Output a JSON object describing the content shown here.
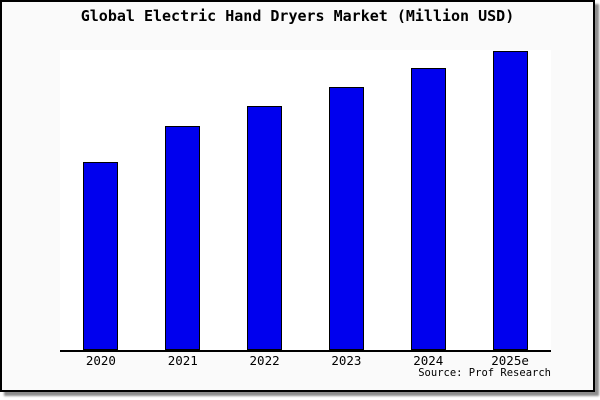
{
  "chart": {
    "title": "Global Electric Hand Dryers Market (Million USD)",
    "source_note": "Source: Prof Research"
  },
  "colors": {
    "bar_fill": "#0000EE",
    "bar_border": "#000000",
    "frame_background": "#fafafa",
    "plot_background": "#ffffff",
    "axis_line": "#000000",
    "frame_border": "#000000",
    "frame_shadow": "#8c8c8c",
    "text": "#000000"
  },
  "chart_data": {
    "type": "bar",
    "title": "Global Electric Hand Dryers Market (Million USD)",
    "categories": [
      "2020",
      "2021",
      "2022",
      "2023",
      "2024",
      "2025e"
    ],
    "values": [
      188,
      224,
      244,
      263,
      282,
      299
    ],
    "values_normalized_pct_of_max": [
      63,
      75,
      82,
      88,
      94,
      100
    ],
    "value_unit": "relative bar height in pixels (chart displays no y-axis scale or value labels)",
    "xlabel": "",
    "ylabel": "",
    "grid": false,
    "legend": false,
    "y_axis_shown": false,
    "x_axis_line": true,
    "bar_color": "#0000EE",
    "bar_border_color": "#000000",
    "source": "Source: Prof Research"
  }
}
